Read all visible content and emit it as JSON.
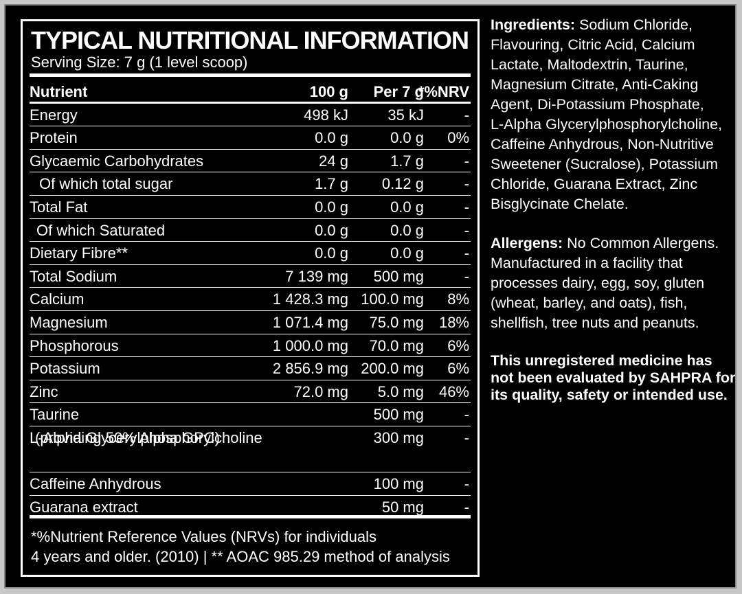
{
  "title": "TYPICAL NUTRITIONAL INFORMATION",
  "serving": "Serving Size: 7 g (1 level scoop)",
  "headers": {
    "nutrient": "Nutrient",
    "per100": "100 g",
    "per7": "Per 7 g",
    "nrv": "*%NRV"
  },
  "rows": [
    {
      "name": "Energy",
      "per100": "498 kJ",
      "per7": "35 kJ",
      "nrv": "-"
    },
    {
      "name": "Protein",
      "per100": "0.0 g",
      "per7": "0.0 g",
      "nrv": "0%"
    },
    {
      "name": "Glycaemic Carbohydrates",
      "per100": "24 g",
      "per7": "1.7 g",
      "nrv": "-"
    },
    {
      "name": "Of which total sugar",
      "per100": "1.7 g",
      "per7": "0.12 g",
      "nrv": "-"
    },
    {
      "name": "Total Fat",
      "per100": "0.0 g",
      "per7": "0.0 g",
      "nrv": "-"
    },
    {
      "name": "Of which Saturated",
      "per100": "0.0 g",
      "per7": "0.0 g",
      "nrv": "-"
    },
    {
      "name": "Dietary Fibre**",
      "per100": "0.0 g",
      "per7": "0.0 g",
      "nrv": "-"
    },
    {
      "name": "Total Sodium",
      "per100": "7 139 mg",
      "per7": "500 mg",
      "nrv": "-"
    },
    {
      "name": "Calcium",
      "per100": "1 428.3 mg",
      "per7": "100.0 mg",
      "nrv": "8%"
    },
    {
      "name": "Magnesium",
      "per100": "1 071.4 mg",
      "per7": "75.0 mg",
      "nrv": "18%"
    },
    {
      "name": "Phosphorous",
      "per100": "1 000.0 mg",
      "per7": "70.0 mg",
      "nrv": "6%"
    },
    {
      "name": "Potassium",
      "per100": "2 856.9 mg",
      "per7": "200.0 mg",
      "nrv": "6%"
    },
    {
      "name": "Zinc",
      "per100": "72.0 mg",
      "per7": "5.0 mg",
      "nrv": "46%"
    },
    {
      "name": "Taurine",
      "per100": "",
      "per7": "500 mg",
      "nrv": "-"
    },
    {
      "name": "L-Alpha Glycerylphosphorylcholine",
      "sub": "(providing 50% Alpha GPC)",
      "per100": "",
      "per7": "300 mg",
      "nrv": "-"
    },
    {
      "name": "Caffeine Anhydrous",
      "per100": "",
      "per7": "100 mg",
      "nrv": "-"
    },
    {
      "name": "Guarana extract",
      "per100": "",
      "per7": "50 mg",
      "nrv": "-"
    }
  ],
  "footnote": {
    "line1": "*%Nutrient Reference Values (NRVs) for individuals",
    "line2": "4 years and older. (2010) | ** AOAC 985.29 method of analysis"
  },
  "ingredients": {
    "label": "Ingredients:",
    "lines": [
      "Sodium Chloride,",
      "Flavouring, Citric Acid, Calcium",
      "Lactate, Maltodextrin, Taurine,",
      "Magnesium Citrate, Anti-Caking",
      "Agent, Di-Potassium Phosphate,",
      "L-Alpha Glycerylphosphorylcholine,",
      "Caffeine Anhydrous, Non-Nutritive",
      "Sweetener (Sucralose), Potassium",
      "Chloride, Guarana Extract, Zinc",
      "Bisglycinate Chelate."
    ]
  },
  "allergens": {
    "label": "Allergens:",
    "lines": [
      "No Common Allergens.",
      "Manufactured in a facility that",
      "processes dairy, egg, soy, gluten",
      "(wheat, barley, and oats), fish,",
      "shellfish, tree nuts and peanuts."
    ]
  },
  "warning": {
    "lines": [
      "This unregistered medicine has",
      "not been evaluated by SAHPRA for",
      "its quality, safety or intended use."
    ]
  }
}
